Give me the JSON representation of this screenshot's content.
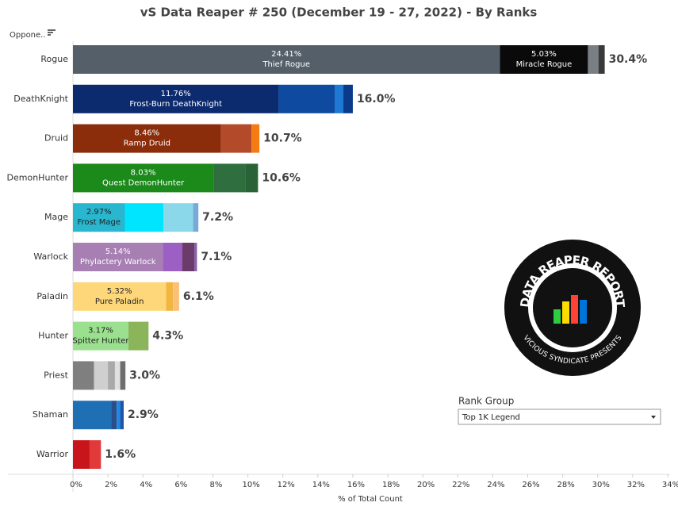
{
  "chart_data": {
    "type": "stacked-bar",
    "title": "vS Data Reaper #  250 (December 19 - 27, 2022) - By Ranks",
    "filter_label": "Oppone..",
    "x_label": "% of Total Count",
    "xlim": [
      0,
      34
    ],
    "xticks": [
      {
        "value": 0,
        "label": "0%"
      },
      {
        "value": 2,
        "label": "2%"
      },
      {
        "value": 4,
        "label": "4%"
      },
      {
        "value": 6,
        "label": "6%"
      },
      {
        "value": 8,
        "label": "8%"
      },
      {
        "value": 10,
        "label": "10%"
      },
      {
        "value": 12,
        "label": "12%"
      },
      {
        "value": 14,
        "label": "14%"
      },
      {
        "value": 16,
        "label": "16%"
      },
      {
        "value": 18,
        "label": "18%"
      },
      {
        "value": 20,
        "label": "20%"
      },
      {
        "value": 22,
        "label": "22%"
      },
      {
        "value": 24,
        "label": "24%"
      },
      {
        "value": 26,
        "label": "26%"
      },
      {
        "value": 28,
        "label": "28%"
      },
      {
        "value": 30,
        "label": "30%"
      },
      {
        "value": 32,
        "label": "32%"
      },
      {
        "value": 34,
        "label": "34%"
      }
    ],
    "categories": [
      "Rogue",
      "DeathKnight",
      "Druid",
      "DemonHunter",
      "Mage",
      "Warlock",
      "Paladin",
      "Hunter",
      "Priest",
      "Shaman",
      "Warrior"
    ],
    "rows": [
      {
        "total_label": "30.4%",
        "segments": [
          {
            "name": "Thief Rogue",
            "value": 24.41,
            "value_label": "24.41%",
            "color": "#555f69",
            "text_color": "#ffffff"
          },
          {
            "name": "Miracle Rogue",
            "value": 5.03,
            "value_label": "5.03%",
            "color": "#0a0a0a",
            "text_color": "#ffffff"
          },
          {
            "value": 0.6,
            "color": "#7a7f85"
          },
          {
            "value": 0.36,
            "color": "#3a3a3a"
          }
        ]
      },
      {
        "total_label": "16.0%",
        "segments": [
          {
            "name": "Frost-Burn DeathKnight",
            "value": 11.76,
            "value_label": "11.76%",
            "color": "#0c2a6e",
            "text_color": "#ffffff"
          },
          {
            "value": 3.2,
            "color": "#0d4aa0"
          },
          {
            "value": 0.5,
            "color": "#1e78d4"
          },
          {
            "value": 0.54,
            "color": "#0c3a8a"
          }
        ]
      },
      {
        "total_label": "10.7%",
        "segments": [
          {
            "name": "Ramp Druid",
            "value": 8.46,
            "value_label": "8.46%",
            "color": "#8b2d0b",
            "text_color": "#ffffff"
          },
          {
            "value": 1.75,
            "color": "#b34a2a"
          },
          {
            "value": 0.45,
            "color": "#f57c12"
          }
        ]
      },
      {
        "total_label": "10.6%",
        "segments": [
          {
            "name": "Quest DemonHunter",
            "value": 8.03,
            "value_label": "8.03%",
            "color": "#1b8a1b",
            "text_color": "#ffffff"
          },
          {
            "value": 1.85,
            "color": "#2f6e3e"
          },
          {
            "value": 0.7,
            "color": "#2a6238"
          }
        ]
      },
      {
        "total_label": "7.2%",
        "segments": [
          {
            "name": "Frost Mage",
            "value": 2.97,
            "value_label": "2.97%",
            "color": "#29b6cf",
            "text_color": "#222222"
          },
          {
            "value": 2.2,
            "color": "#00e5ff"
          },
          {
            "value": 1.7,
            "color": "#8ad8ea"
          },
          {
            "value": 0.3,
            "color": "#78a9d8"
          }
        ]
      },
      {
        "total_label": "7.1%",
        "segments": [
          {
            "name": "Phylactery Warlock",
            "value": 5.14,
            "value_label": "5.14%",
            "color": "#a77fb3",
            "text_color": "#ffffff"
          },
          {
            "value": 1.1,
            "color": "#9c5fc4"
          },
          {
            "value": 0.7,
            "color": "#6b3c6b"
          },
          {
            "value": 0.15,
            "color": "#8a5fa8"
          }
        ]
      },
      {
        "total_label": "6.1%",
        "segments": [
          {
            "name": "Pure Paladin",
            "value": 5.32,
            "value_label": "5.32%",
            "color": "#fdd77a",
            "text_color": "#222222"
          },
          {
            "value": 0.4,
            "color": "#f2b640"
          },
          {
            "value": 0.35,
            "color": "#f9c07a"
          }
        ]
      },
      {
        "total_label": "4.3%",
        "segments": [
          {
            "name": "Spitter Hunter",
            "value": 3.17,
            "value_label": "3.17%",
            "color": "#9be08e",
            "text_color": "#222222"
          },
          {
            "value": 1.15,
            "color": "#8ab55a"
          }
        ]
      },
      {
        "total_label": "3.0%",
        "segments": [
          {
            "value": 1.2,
            "color": "#7f7f7f"
          },
          {
            "value": 0.8,
            "color": "#cfcfcf"
          },
          {
            "value": 0.4,
            "color": "#a9a9a9"
          },
          {
            "value": 0.3,
            "color": "#e0e0e0"
          },
          {
            "value": 0.3,
            "color": "#6f6f6f"
          }
        ]
      },
      {
        "total_label": "2.9%",
        "segments": [
          {
            "value": 2.2,
            "color": "#1f6fb5"
          },
          {
            "value": 0.3,
            "color": "#2a4f8a"
          },
          {
            "value": 0.2,
            "color": "#1e88e5"
          },
          {
            "value": 0.2,
            "color": "#2255aa"
          }
        ]
      },
      {
        "total_label": "1.6%",
        "segments": [
          {
            "value": 0.95,
            "color": "#c8151b"
          },
          {
            "value": 0.65,
            "color": "#e03a3a"
          }
        ]
      }
    ],
    "rank_group_title": "Rank Group",
    "rank_group_value": "Top 1K Legend",
    "logo_top": "DATA REAPER REPORT",
    "logo_bottom": "VICIOUS SYNDICATE PRESENTS"
  }
}
